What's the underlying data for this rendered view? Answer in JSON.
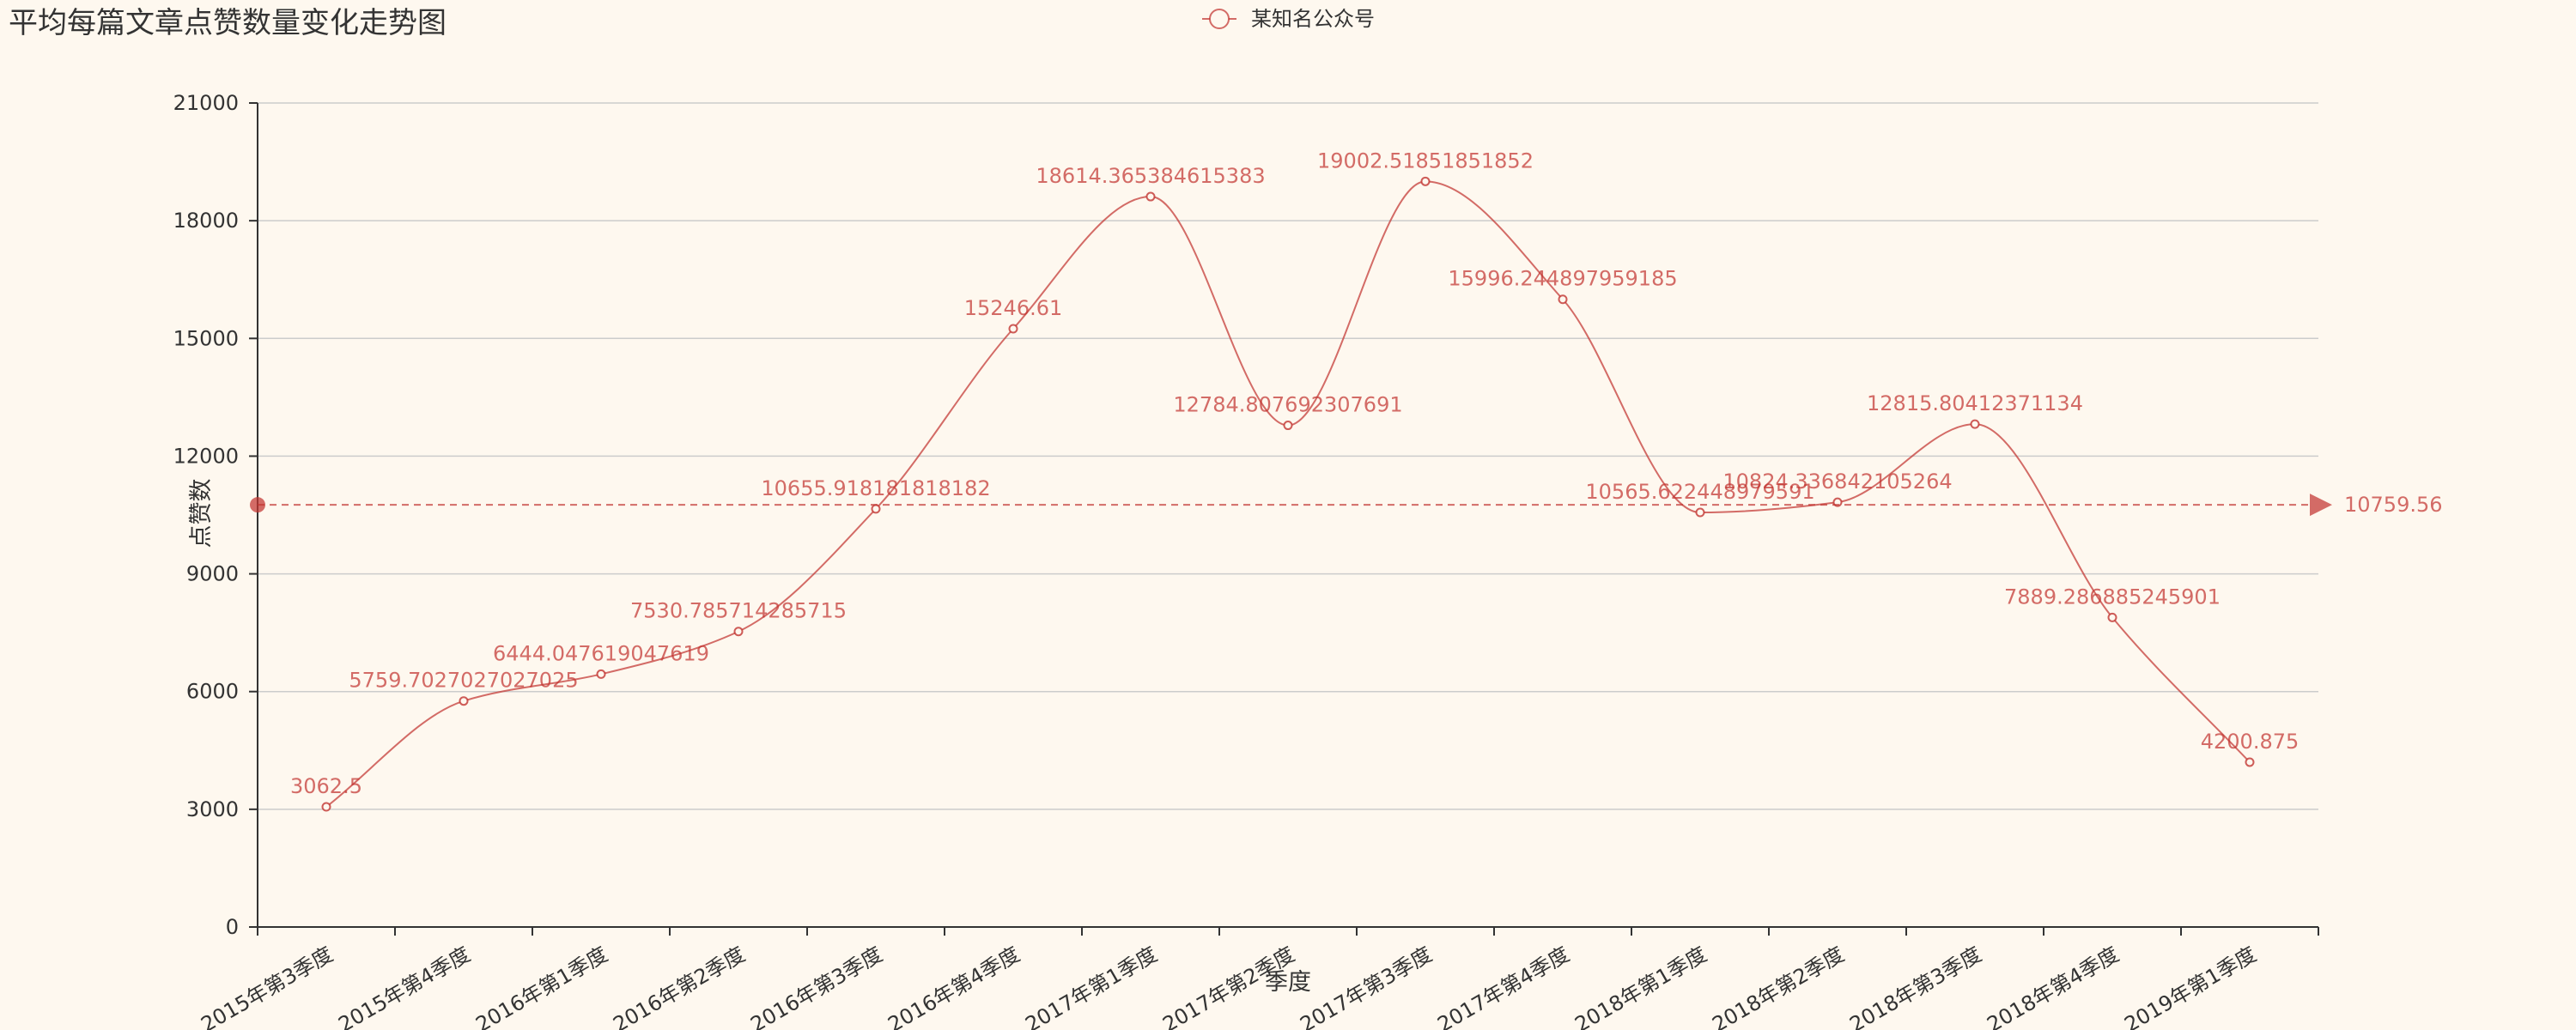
{
  "chart_data": {
    "type": "line",
    "title": "平均每篇文章点赞数量变化走势图",
    "legend": [
      "某知名公众号"
    ],
    "legend_position": "top-center",
    "xlabel": "季度",
    "ylabel": "点赞数",
    "ylim": [
      0,
      21000
    ],
    "yticks": [
      0,
      3000,
      6000,
      9000,
      12000,
      15000,
      18000,
      21000
    ],
    "grid": true,
    "smooth": true,
    "categories": [
      "2015年第3季度",
      "2015年第4季度",
      "2016年第1季度",
      "2016年第2季度",
      "2016年第3季度",
      "2016年第4季度",
      "2017年第1季度",
      "2017年第2季度",
      "2017年第3季度",
      "2017年第4季度",
      "2018年第1季度",
      "2018年第2季度",
      "2018年第3季度",
      "2018年第4季度",
      "2019年第1季度"
    ],
    "series": [
      {
        "name": "某知名公众号",
        "values": [
          3062.5,
          5759.7027027027025,
          6444.047619047619,
          7530.785714285715,
          10655.918181818182,
          15246.61,
          18614.365384615383,
          12784.807692307691,
          19002.51851851852,
          15996.244897959185,
          10565.622448979591,
          10824.336842105264,
          12815.80412371134,
          7889.286885245901,
          4200.875
        ],
        "labels": [
          "3062.5",
          "5759.7027027027025",
          "6444.047619047619",
          "7530.785714285715",
          "10655.918181818182",
          "15246.61",
          "18614.365384615383",
          "12784.807692307691",
          "19002.51851851852",
          "15996.244897959185",
          "10565.622448979591",
          "10824.336842105264",
          "12815.80412371134",
          "7889.286885245901",
          "4200.875"
        ]
      }
    ],
    "mark_line": {
      "type": "average",
      "value": 10759.56,
      "label": "10759.56"
    },
    "colors": {
      "series": "#c23531",
      "axis": "#333333",
      "grid": "#cccccc",
      "background": "#fef8ef"
    }
  }
}
